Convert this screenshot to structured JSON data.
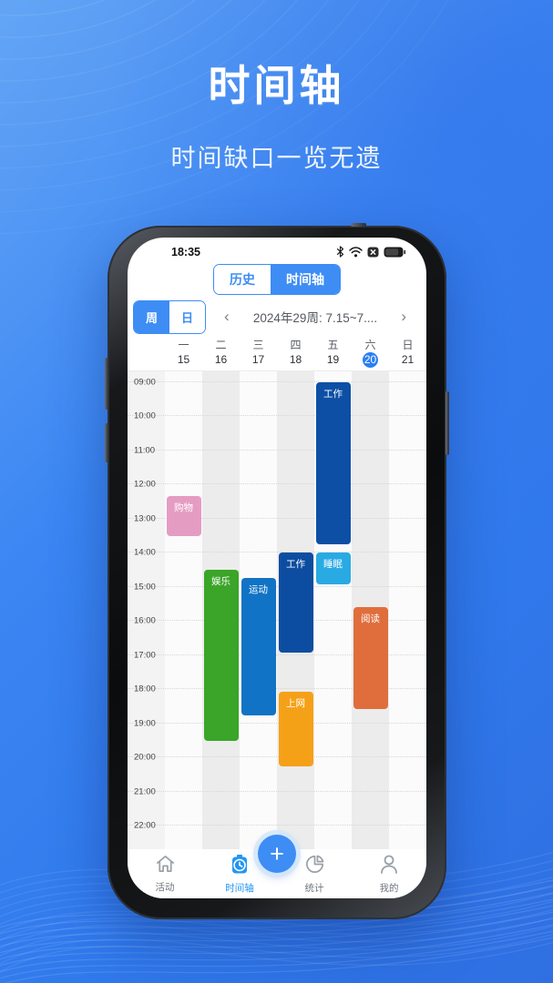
{
  "hero": {
    "title": "时间轴",
    "subtitle": "时间缺口一览无遗"
  },
  "status_bar": {
    "time": "18:35",
    "icons": [
      "bluetooth",
      "wifi",
      "x-badge",
      "battery"
    ]
  },
  "view_tabs": {
    "items": [
      {
        "label": "历史",
        "active": false
      },
      {
        "label": "时间轴",
        "active": true
      }
    ]
  },
  "range_toggle": {
    "items": [
      {
        "label": "周",
        "active": true
      },
      {
        "label": "日",
        "active": false
      }
    ]
  },
  "week_nav": {
    "prev": "‹",
    "label": "2024年29周: 7.15~7....",
    "next": "›"
  },
  "days": [
    {
      "name": "一",
      "date": "15",
      "selected": false
    },
    {
      "name": "二",
      "date": "16",
      "selected": false
    },
    {
      "name": "三",
      "date": "17",
      "selected": false
    },
    {
      "name": "四",
      "date": "18",
      "selected": false
    },
    {
      "name": "五",
      "date": "19",
      "selected": false
    },
    {
      "name": "六",
      "date": "20",
      "selected": true
    },
    {
      "name": "日",
      "date": "21",
      "selected": false
    }
  ],
  "timeline": {
    "hours": [
      "09:00",
      "10:00",
      "11:00",
      "12:00",
      "13:00",
      "14:00",
      "15:00",
      "16:00",
      "17:00",
      "18:00",
      "19:00",
      "20:00",
      "21:00",
      "22:00"
    ],
    "events": [
      {
        "label": "工作",
        "day": 4,
        "start": "09:00",
        "end": "13:50",
        "color": "#0d4fa5"
      },
      {
        "label": "购物",
        "day": 0,
        "start": "12:20",
        "end": "13:35",
        "color": "#e59cc3"
      },
      {
        "label": "工作",
        "day": 3,
        "start": "14:00",
        "end": "17:00",
        "color": "#0d4da1"
      },
      {
        "label": "睡眠",
        "day": 4,
        "start": "14:00",
        "end": "15:00",
        "color": "#29aae3"
      },
      {
        "label": "娱乐",
        "day": 1,
        "start": "14:30",
        "end": "19:35",
        "color": "#3aa528"
      },
      {
        "label": "运动",
        "day": 2,
        "start": "14:45",
        "end": "18:50",
        "color": "#1173c5"
      },
      {
        "label": "阅读",
        "day": 5,
        "start": "15:35",
        "end": "18:40",
        "color": "#e06e3c"
      },
      {
        "label": "上网",
        "day": 3,
        "start": "18:05",
        "end": "20:20",
        "color": "#f5a118"
      }
    ]
  },
  "fab": {
    "label": "+"
  },
  "bottom_nav": {
    "items": [
      {
        "label": "活动",
        "icon": "home-icon",
        "active": false
      },
      {
        "label": "时间轴",
        "icon": "timeline-icon",
        "active": true
      },
      {
        "label": "统计",
        "icon": "stats-icon",
        "active": false
      },
      {
        "label": "我的",
        "icon": "profile-icon",
        "active": false
      }
    ]
  },
  "colors": {
    "accent_blue": "#3d8df5",
    "nav_active_blue": "#2196f3",
    "selected_day_blue": "#2b7ff2",
    "stripe_gray": "#ececec",
    "stripe_light": "#fbfbfb",
    "gutter_gray": "#f3f3f3"
  }
}
